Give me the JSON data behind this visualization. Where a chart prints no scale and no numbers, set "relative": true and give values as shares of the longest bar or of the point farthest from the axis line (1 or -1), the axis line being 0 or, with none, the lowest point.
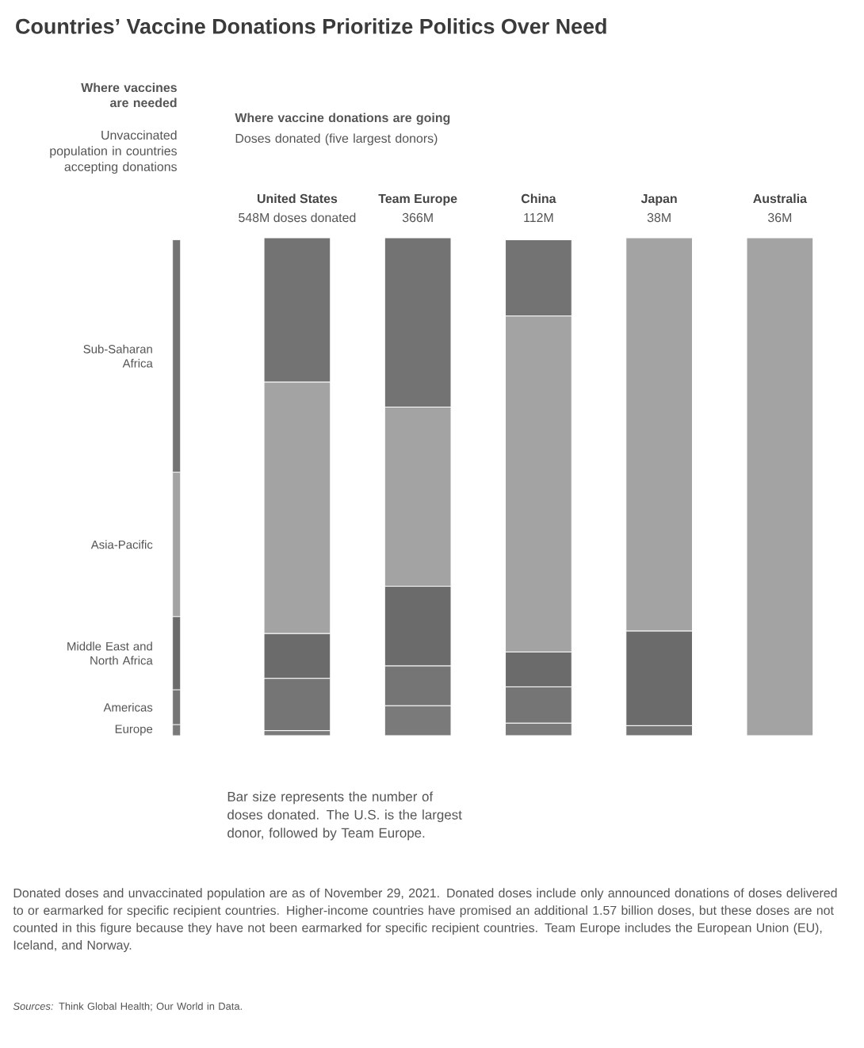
{
  "chart_data": {
    "type": "bar",
    "title": "Countries’ Vaccine Donations Prioritize Politics Over Need",
    "stacked": true,
    "relative": true,
    "categories": [
      null,
      "United States",
      "Team Europe",
      "China",
      "Japan",
      "Australia"
    ],
    "series": [
      {
        "name": "Europe",
        "color": "#7a7a7a",
        "values": [
          0.022,
          0.01,
          0.06,
          0.025,
          0,
          0
        ]
      },
      {
        "name": "Americas",
        "color": "#757575",
        "values": [
          0.07,
          0.105,
          0.08,
          0.073,
          0.02,
          0
        ]
      },
      {
        "name": "Middle East and North Africa",
        "color": "#6b6b6b",
        "values": [
          0.147,
          0.09,
          0.16,
          0.07,
          0.19,
          0
        ]
      },
      {
        "name": "Asia-Pacific",
        "color": "#a3a3a3",
        "values": [
          0.29,
          0.505,
          0.36,
          0.675,
          0.79,
          1
        ]
      },
      {
        "name": "Sub-Saharan Africa",
        "color": "#737373",
        "values": [
          0.467,
          0.29,
          0.34,
          0.153,
          0,
          0
        ]
      }
    ],
    "annotations": [
      "**Where vaccines are needed**",
      "Unvaccinated population in countries accepting donations",
      "**Where vaccine donations are going**",
      "Doses donated (five largest donors)",
      "Bar size represents the number of doses donated. The U.S. is the largest donor, followed by Team Europe.",
      "Donated doses and unvaccinated population are as of November 29, 2021. Donated doses include only announced donations of doses delivered to or earmarked for specific recipient countries. Higher-income countries have promised an additional 1.57 billion doses, but these doses are not counted in this figure because they have not been earmarked for specific recipient countries. Team Europe includes the European Union (EU), Iceland, and Norway.",
      "*Sources:* Think Global Health; Our World in Data.",
      {
        "text": "548M doses donated",
        "x": "United States",
        "y": 1
      },
      {
        "text": "366M",
        "x": "Team Europe",
        "y": 1
      },
      {
        "text": "112M",
        "x": "China",
        "y": 1
      },
      {
        "text": "38M",
        "x": "Japan",
        "y": 1
      },
      {
        "text": "36M",
        "x": "Australia",
        "y": 1
      }
    ]
  }
}
